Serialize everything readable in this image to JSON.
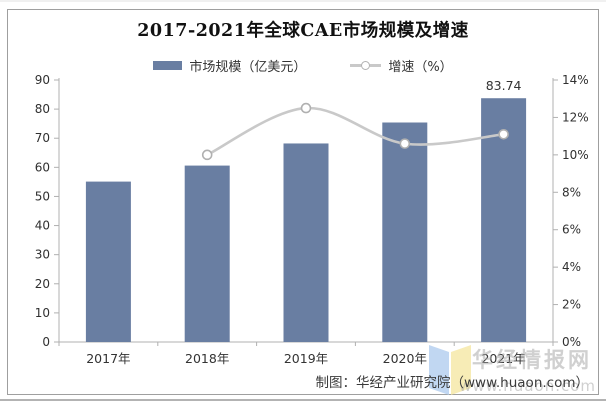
{
  "chart_data": {
    "type": "bar-line-combo",
    "title": "2017-2021年全球CAE市场规模及增速",
    "categories": [
      "2017年",
      "2018年",
      "2019年",
      "2020年",
      "2021年"
    ],
    "series": [
      {
        "name": "市场规模（亿美元）",
        "type": "bar",
        "axis": "left",
        "values": [
          55.1,
          60.6,
          68.2,
          75.4,
          83.74
        ]
      },
      {
        "name": "增速（%）",
        "type": "line",
        "axis": "right",
        "values": [
          null,
          10.0,
          12.5,
          10.6,
          11.1
        ],
        "unit": "%"
      }
    ],
    "left_axis": {
      "min": 0,
      "max": 90,
      "step": 10,
      "tick_labels": [
        "0",
        "10",
        "20",
        "30",
        "40",
        "50",
        "60",
        "70",
        "80",
        "90"
      ]
    },
    "right_axis": {
      "min": 0,
      "max": 14,
      "step": 2,
      "tick_labels": [
        "0%",
        "2%",
        "4%",
        "6%",
        "8%",
        "10%",
        "12%",
        "14%"
      ]
    },
    "data_labels": [
      {
        "category": "2021年",
        "series": "市场规模（亿美元）",
        "text": "83.74"
      }
    ],
    "legend_position": "top",
    "grid": false,
    "colors": {
      "bar": "#697EA2",
      "line": "#C9C9C9",
      "marker_fill": "#FFFFFF",
      "marker_stroke": "#B0B0B0",
      "axis": "#B0B0B0",
      "tick_text": "#303030",
      "title_text": "#111111"
    }
  },
  "legend": {
    "market_size": "市场规模（亿美元）",
    "growth": "增速（%）"
  },
  "footer": {
    "attribution": "制图：华经产业研究院（www.huaon.com）"
  },
  "watermark": {
    "brand": "华经情报网",
    "url": "www.huaon.com"
  }
}
